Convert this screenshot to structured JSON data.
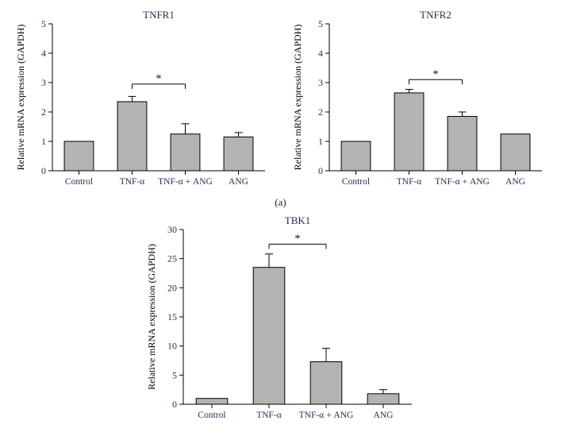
{
  "bar_fill": "#b3b3b3",
  "bar_stroke": "#000000",
  "text_color_title": "#2a2a60",
  "text_color_axis_num": "#2a2a60",
  "text_color_xlabel": "#2a2a60",
  "ylabel": "Relative mRNA expression (GAPDH)",
  "categories": [
    "Control",
    "TNF-α",
    "TNF-α + ANG",
    "ANG"
  ],
  "panel_label": "(a)",
  "charts": {
    "tnfr1": {
      "title": "TNFR1",
      "ylim": [
        0,
        5
      ],
      "ytick_step": 1,
      "values": [
        1.0,
        2.35,
        1.25,
        1.15
      ],
      "errors": [
        0,
        0.18,
        0.35,
        0.15
      ],
      "sig": {
        "from": 1,
        "to": 2,
        "label": "*",
        "y": 2.95
      }
    },
    "tnfr2": {
      "title": "TNFR2",
      "ylim": [
        0,
        5
      ],
      "ytick_step": 1,
      "values": [
        1.0,
        2.65,
        1.85,
        1.25
      ],
      "errors": [
        0,
        0.12,
        0.15,
        0
      ],
      "sig": {
        "from": 1,
        "to": 2,
        "label": "*",
        "y": 3.1
      }
    },
    "tbk1": {
      "title": "TBK1",
      "ylim": [
        0,
        30
      ],
      "ytick_step": 5,
      "values": [
        1.0,
        23.5,
        7.3,
        1.8
      ],
      "errors": [
        0,
        2.3,
        2.3,
        0.7
      ],
      "sig": {
        "from": 1,
        "to": 2,
        "label": "*",
        "y": 27.5
      }
    }
  },
  "sizes": {
    "top_w": 330,
    "top_h": 235,
    "bot_w": 350,
    "bot_h": 270
  }
}
